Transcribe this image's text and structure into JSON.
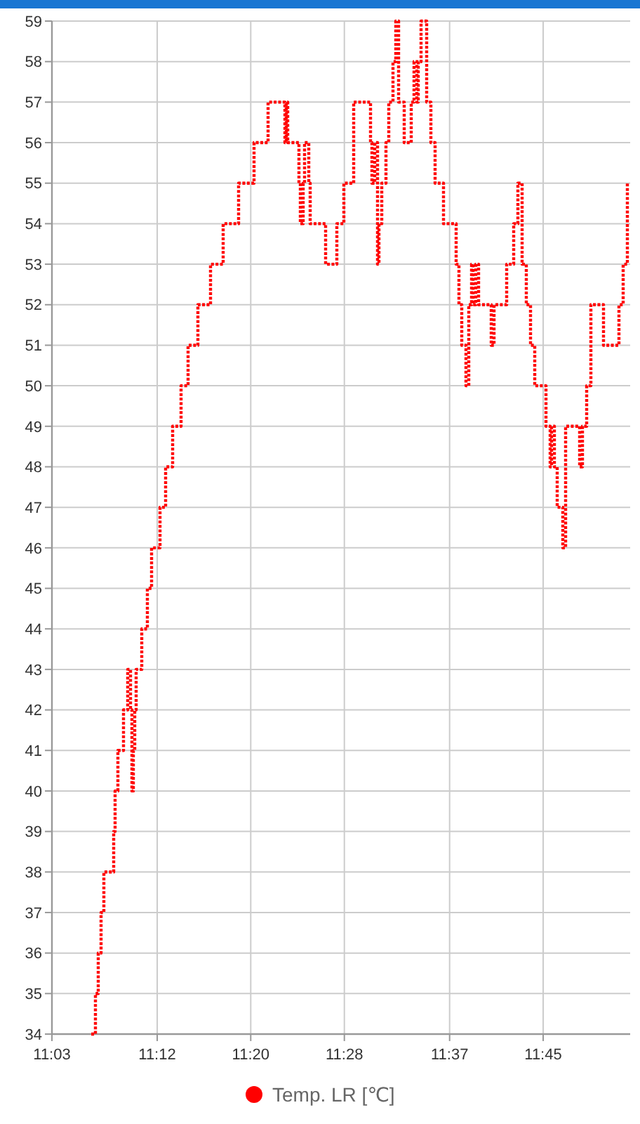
{
  "chart_data": {
    "type": "step",
    "x": [
      11.106,
      11.112,
      11.116,
      11.12,
      11.124,
      11.138,
      11.14,
      11.144,
      11.152,
      11.158,
      11.162,
      11.164,
      11.166,
      11.168,
      11.17,
      11.178,
      11.186,
      11.192,
      11.204,
      11.212,
      11.222,
      11.234,
      11.244,
      11.258,
      11.276,
      11.294,
      11.316,
      11.338,
      11.358,
      11.382,
      11.384,
      11.386,
      11.402,
      11.404,
      11.408,
      11.41,
      11.416,
      11.418,
      11.44,
      11.456,
      11.466,
      11.48,
      11.504,
      11.506,
      11.51,
      11.514,
      11.516,
      11.52,
      11.526,
      11.53,
      11.536,
      11.54,
      11.544,
      11.552,
      11.562,
      11.566,
      11.57,
      11.572,
      11.576,
      11.584,
      11.59,
      11.596,
      11.608,
      11.626,
      11.63,
      11.634,
      11.64,
      11.644,
      11.648,
      11.65,
      11.654,
      11.658,
      11.676,
      11.68,
      11.698,
      11.708,
      11.714,
      11.72,
      11.726,
      11.732,
      11.738,
      11.754,
      11.76,
      11.762,
      11.766,
      11.77,
      11.778,
      11.782,
      11.802,
      11.806,
      11.812,
      11.818,
      11.836,
      11.858,
      11.864,
      11.87
    ],
    "series": [
      {
        "name": "Temp. LR [℃]",
        "color": "#ff0000",
        "values": [
          34,
          35,
          36,
          37,
          38,
          39,
          40,
          41,
          42,
          43,
          42,
          40,
          41,
          42,
          43,
          44,
          45,
          46,
          47,
          48,
          49,
          50,
          51,
          52,
          53,
          54,
          55,
          56,
          57,
          56,
          57,
          56,
          55,
          54,
          55,
          56,
          55,
          54,
          53,
          54,
          55,
          57,
          56,
          55,
          56,
          53,
          54,
          55,
          56,
          57,
          58,
          59,
          57,
          56,
          57,
          58,
          57,
          58,
          59,
          57,
          56,
          55,
          54,
          53,
          52,
          51,
          50,
          52,
          53,
          52,
          53,
          52,
          51,
          52,
          53,
          54,
          55,
          53,
          52,
          51,
          50,
          49,
          48,
          49,
          48,
          47,
          46,
          49,
          48,
          49,
          50,
          52,
          51,
          52,
          53,
          55
        ]
      }
    ],
    "xlim": [
      11.05,
      11.874
    ],
    "ylim": [
      34,
      59
    ],
    "xticks": [
      {
        "value": 11.05,
        "label": "11:03"
      },
      {
        "value": 11.2,
        "label": "11:12"
      },
      {
        "value": 11.3333,
        "label": "11:20"
      },
      {
        "value": 11.4667,
        "label": "11:28"
      },
      {
        "value": 11.6167,
        "label": "11:37"
      },
      {
        "value": 11.75,
        "label": "11:45"
      }
    ],
    "yticks": [
      34,
      35,
      36,
      37,
      38,
      39,
      40,
      41,
      42,
      43,
      44,
      45,
      46,
      47,
      48,
      49,
      50,
      51,
      52,
      53,
      54,
      55,
      56,
      57,
      58,
      59
    ],
    "grid": true,
    "legend": "bottom",
    "marker": "none",
    "line_style": "dotted"
  }
}
